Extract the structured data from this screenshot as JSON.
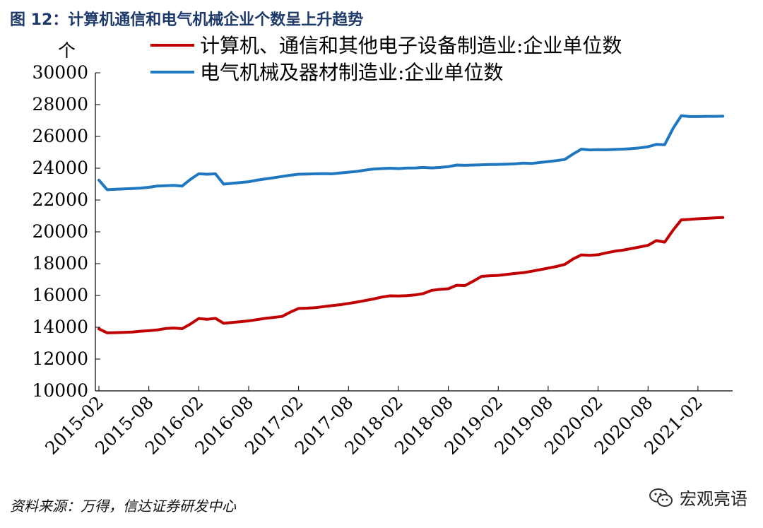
{
  "title": "图 12：计算机通信和电气机械企业个数呈上升趋势",
  "source": "资料来源：万得，信达证券研发中心",
  "watermark": "宏观亮语",
  "colors": {
    "series1": "#c00000",
    "series2": "#1f77c0",
    "title": "#1d3a6b"
  },
  "chart_data": {
    "type": "line",
    "title": "图 12：计算机通信和电气机械企业个数呈上升趋势",
    "ylabel": "个",
    "xlabel": "",
    "ylim": [
      10000,
      30000
    ],
    "yticks": [
      10000,
      12000,
      14000,
      16000,
      18000,
      20000,
      22000,
      24000,
      26000,
      28000,
      30000
    ],
    "xtick_labels": [
      "2015-02",
      "2015-08",
      "2016-02",
      "2016-08",
      "2017-02",
      "2017-08",
      "2018-02",
      "2018-08",
      "2019-02",
      "2019-08",
      "2020-02",
      "2020-08",
      "2021-02"
    ],
    "x_range_months": [
      0,
      76
    ],
    "legend_position": "top",
    "series": [
      {
        "name": "计算机、通信和其他电子设备制造业:企业单位数",
        "color": "#c00000",
        "points": [
          [
            0,
            13900
          ],
          [
            1,
            13650
          ],
          [
            2,
            13660
          ],
          [
            3,
            13680
          ],
          [
            4,
            13700
          ],
          [
            5,
            13750
          ],
          [
            6,
            13780
          ],
          [
            7,
            13830
          ],
          [
            8,
            13920
          ],
          [
            9,
            13950
          ],
          [
            10,
            13910
          ],
          [
            11,
            14200
          ],
          [
            12,
            14550
          ],
          [
            13,
            14500
          ],
          [
            14,
            14560
          ],
          [
            15,
            14250
          ],
          [
            16,
            14300
          ],
          [
            17,
            14350
          ],
          [
            18,
            14400
          ],
          [
            19,
            14480
          ],
          [
            20,
            14560
          ],
          [
            21,
            14620
          ],
          [
            22,
            14680
          ],
          [
            23,
            14950
          ],
          [
            24,
            15180
          ],
          [
            25,
            15200
          ],
          [
            26,
            15230
          ],
          [
            27,
            15300
          ],
          [
            28,
            15360
          ],
          [
            29,
            15420
          ],
          [
            30,
            15500
          ],
          [
            31,
            15580
          ],
          [
            32,
            15680
          ],
          [
            33,
            15780
          ],
          [
            34,
            15900
          ],
          [
            35,
            15980
          ],
          [
            36,
            15970
          ],
          [
            37,
            15990
          ],
          [
            38,
            16030
          ],
          [
            39,
            16120
          ],
          [
            40,
            16320
          ],
          [
            41,
            16380
          ],
          [
            42,
            16420
          ],
          [
            43,
            16640
          ],
          [
            44,
            16620
          ],
          [
            45,
            16900
          ],
          [
            46,
            17200
          ],
          [
            47,
            17240
          ],
          [
            48,
            17260
          ],
          [
            49,
            17320
          ],
          [
            50,
            17380
          ],
          [
            51,
            17430
          ],
          [
            52,
            17520
          ],
          [
            53,
            17620
          ],
          [
            54,
            17720
          ],
          [
            55,
            17820
          ],
          [
            56,
            17950
          ],
          [
            57,
            18300
          ],
          [
            58,
            18550
          ],
          [
            59,
            18520
          ],
          [
            60,
            18560
          ],
          [
            61,
            18680
          ],
          [
            62,
            18780
          ],
          [
            63,
            18850
          ],
          [
            64,
            18950
          ],
          [
            65,
            19050
          ],
          [
            66,
            19150
          ],
          [
            67,
            19450
          ],
          [
            68,
            19350
          ],
          [
            69,
            20100
          ],
          [
            70,
            20750
          ],
          [
            71,
            20780
          ],
          [
            72,
            20820
          ],
          [
            73,
            20850
          ],
          [
            74,
            20880
          ],
          [
            75,
            20900
          ]
        ]
      },
      {
        "name": "电气机械及器材制造业:企业单位数",
        "color": "#1f77c0",
        "points": [
          [
            0,
            23250
          ],
          [
            1,
            22650
          ],
          [
            2,
            22680
          ],
          [
            3,
            22700
          ],
          [
            4,
            22720
          ],
          [
            5,
            22750
          ],
          [
            6,
            22800
          ],
          [
            7,
            22880
          ],
          [
            8,
            22900
          ],
          [
            9,
            22920
          ],
          [
            10,
            22880
          ],
          [
            11,
            23300
          ],
          [
            12,
            23650
          ],
          [
            13,
            23620
          ],
          [
            14,
            23650
          ],
          [
            15,
            23000
          ],
          [
            16,
            23050
          ],
          [
            17,
            23100
          ],
          [
            18,
            23150
          ],
          [
            19,
            23250
          ],
          [
            20,
            23330
          ],
          [
            21,
            23400
          ],
          [
            22,
            23480
          ],
          [
            23,
            23560
          ],
          [
            24,
            23620
          ],
          [
            25,
            23630
          ],
          [
            26,
            23650
          ],
          [
            27,
            23660
          ],
          [
            28,
            23650
          ],
          [
            29,
            23700
          ],
          [
            30,
            23750
          ],
          [
            31,
            23800
          ],
          [
            32,
            23880
          ],
          [
            33,
            23950
          ],
          [
            34,
            23980
          ],
          [
            35,
            24000
          ],
          [
            36,
            23980
          ],
          [
            37,
            24010
          ],
          [
            38,
            24020
          ],
          [
            39,
            24050
          ],
          [
            40,
            24020
          ],
          [
            41,
            24050
          ],
          [
            42,
            24100
          ],
          [
            43,
            24200
          ],
          [
            44,
            24180
          ],
          [
            45,
            24200
          ],
          [
            46,
            24220
          ],
          [
            47,
            24230
          ],
          [
            48,
            24240
          ],
          [
            49,
            24260
          ],
          [
            50,
            24280
          ],
          [
            51,
            24320
          ],
          [
            52,
            24300
          ],
          [
            53,
            24360
          ],
          [
            54,
            24420
          ],
          [
            55,
            24480
          ],
          [
            56,
            24550
          ],
          [
            57,
            24900
          ],
          [
            58,
            25200
          ],
          [
            59,
            25150
          ],
          [
            60,
            25170
          ],
          [
            61,
            25160
          ],
          [
            62,
            25180
          ],
          [
            63,
            25200
          ],
          [
            64,
            25230
          ],
          [
            65,
            25280
          ],
          [
            66,
            25350
          ],
          [
            67,
            25500
          ],
          [
            68,
            25480
          ],
          [
            69,
            26500
          ],
          [
            70,
            27300
          ],
          [
            71,
            27250
          ],
          [
            72,
            27250
          ],
          [
            73,
            27260
          ],
          [
            74,
            27260
          ],
          [
            75,
            27270
          ]
        ]
      }
    ]
  }
}
